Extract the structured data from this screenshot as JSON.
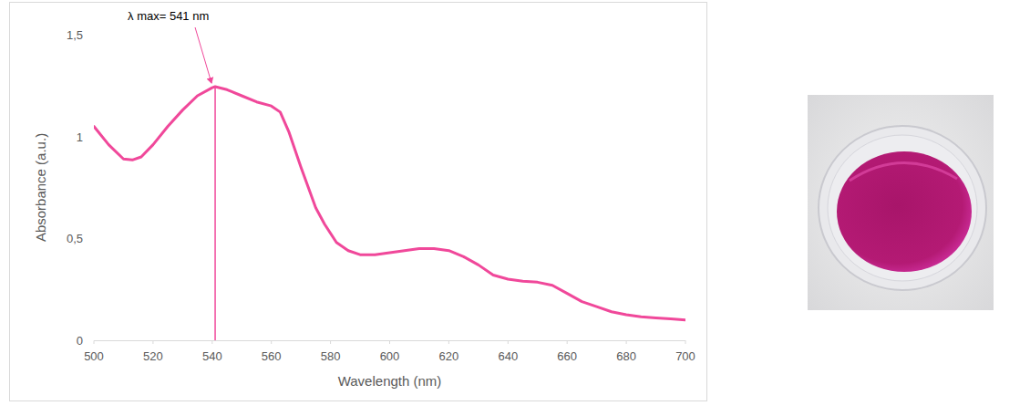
{
  "chart_data": {
    "type": "line",
    "x_label": "Wavelength (nm)",
    "y_label": "Absorbance (a.u.)",
    "color": "#f0489a",
    "grid": false,
    "xlim": [
      500,
      700
    ],
    "ylim": [
      0,
      1.5
    ],
    "xticks": [
      500,
      520,
      540,
      560,
      580,
      600,
      620,
      640,
      660,
      680,
      700
    ],
    "yticks": [
      0,
      {
        "value": 0.5,
        "label": "0,5"
      },
      1,
      {
        "value": 1.5,
        "label": "1,5"
      }
    ],
    "x": [
      500,
      505,
      510,
      513,
      516,
      520,
      525,
      530,
      535,
      540,
      541,
      545,
      550,
      555,
      560,
      563,
      566,
      570,
      575,
      578,
      582,
      586,
      590,
      595,
      600,
      605,
      610,
      615,
      620,
      625,
      630,
      635,
      640,
      645,
      650,
      655,
      660,
      665,
      670,
      675,
      680,
      685,
      690,
      695,
      700
    ],
    "values": [
      1.05,
      0.96,
      0.89,
      0.885,
      0.9,
      0.96,
      1.05,
      1.13,
      1.2,
      1.24,
      1.245,
      1.23,
      1.2,
      1.17,
      1.15,
      1.12,
      1.02,
      0.85,
      0.65,
      0.57,
      0.48,
      0.44,
      0.42,
      0.42,
      0.43,
      0.44,
      0.45,
      0.45,
      0.44,
      0.41,
      0.37,
      0.32,
      0.3,
      0.29,
      0.285,
      0.27,
      0.23,
      0.19,
      0.165,
      0.14,
      0.125,
      0.115,
      0.11,
      0.105,
      0.1
    ],
    "annotations": [
      {
        "text": "λ max= 541 nm",
        "x": 541,
        "y": 1.245
      }
    ]
  }
}
